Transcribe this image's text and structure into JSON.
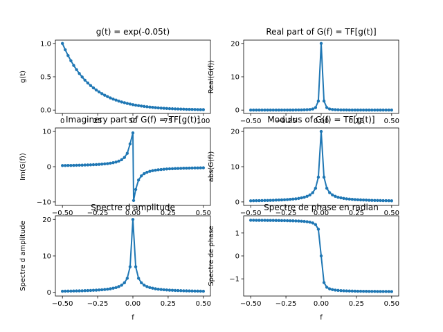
{
  "colors": {
    "line": "#1f77b4",
    "axes": "#000000",
    "background": "#ffffff"
  },
  "chart_data": [
    {
      "type": "line",
      "title": "g(t) = exp(-0.05t)",
      "xlabel": "",
      "ylabel": "g(t)",
      "xlim": [
        -5,
        105
      ],
      "ylim": [
        -0.05,
        1.05
      ],
      "xticks": [
        0,
        25,
        50,
        75,
        100
      ],
      "xtick_labels": [
        "0",
        "25",
        "50",
        "75",
        "100"
      ],
      "yticks": [
        0,
        0.5,
        1
      ],
      "ytick_labels": [
        "0.0",
        "0.5",
        "1.0"
      ],
      "grid": false,
      "series": [
        {
          "x": [
            0,
            2,
            4,
            6,
            8,
            10,
            12,
            14,
            16,
            18,
            20,
            22,
            24,
            26,
            28,
            30,
            32,
            34,
            36,
            38,
            40,
            42,
            44,
            46,
            48,
            50,
            52,
            54,
            56,
            58,
            60,
            62,
            64,
            66,
            68,
            70,
            72,
            74,
            76,
            78,
            80,
            82,
            84,
            86,
            88,
            90,
            92,
            94,
            96,
            98,
            100
          ],
          "y": [
            1.0,
            0.905,
            0.819,
            0.741,
            0.67,
            0.607,
            0.549,
            0.497,
            0.449,
            0.407,
            0.368,
            0.333,
            0.301,
            0.273,
            0.247,
            0.223,
            0.202,
            0.183,
            0.165,
            0.15,
            0.135,
            0.122,
            0.111,
            0.1,
            0.091,
            0.082,
            0.074,
            0.067,
            0.061,
            0.055,
            0.05,
            0.045,
            0.041,
            0.037,
            0.033,
            0.03,
            0.027,
            0.025,
            0.022,
            0.02,
            0.018,
            0.017,
            0.015,
            0.014,
            0.012,
            0.011,
            0.01,
            0.009,
            0.008,
            0.007,
            0.007
          ]
        }
      ]
    },
    {
      "type": "line",
      "title": "Real part of G(f) = TF[g(t)]",
      "xlabel": "",
      "ylabel": "Real(G(f))",
      "xlim": [
        -0.55,
        0.55
      ],
      "ylim": [
        -1,
        21
      ],
      "xticks": [
        -0.5,
        -0.25,
        0,
        0.25,
        0.5
      ],
      "xtick_labels": [
        "−0.50",
        "−0.25",
        "0.00",
        "0.25",
        "0.50"
      ],
      "yticks": [
        0,
        10,
        20
      ],
      "ytick_labels": [
        "0",
        "10",
        "20"
      ],
      "grid": false,
      "series": [
        {
          "x": [
            -0.5,
            -0.48,
            -0.46,
            -0.44,
            -0.42,
            -0.4,
            -0.38,
            -0.36,
            -0.34,
            -0.32,
            -0.3,
            -0.28,
            -0.26,
            -0.24,
            -0.22,
            -0.2,
            -0.18,
            -0.16,
            -0.14,
            -0.12,
            -0.1,
            -0.08,
            -0.06,
            -0.04,
            -0.02,
            0,
            0.02,
            0.04,
            0.06,
            0.08,
            0.1,
            0.12,
            0.14,
            0.16,
            0.18,
            0.2,
            0.22,
            0.24,
            0.26,
            0.28,
            0.3,
            0.32,
            0.34,
            0.36,
            0.38,
            0.4,
            0.42,
            0.44,
            0.46,
            0.48,
            0.5
          ],
          "y": [
            0.01,
            0.01,
            0.01,
            0.01,
            0.01,
            0.01,
            0.01,
            0.01,
            0.01,
            0.01,
            0.01,
            0.02,
            0.02,
            0.02,
            0.03,
            0.03,
            0.04,
            0.05,
            0.06,
            0.09,
            0.12,
            0.19,
            0.33,
            0.76,
            2.72,
            20,
            2.72,
            0.76,
            0.33,
            0.19,
            0.12,
            0.09,
            0.06,
            0.05,
            0.04,
            0.03,
            0.03,
            0.02,
            0.02,
            0.02,
            0.01,
            0.01,
            0.01,
            0.01,
            0.01,
            0.01,
            0.01,
            0.01,
            0.01,
            0.01,
            0.01
          ]
        }
      ]
    },
    {
      "type": "line",
      "title": "Imaginery part of G(f) = TF[g(t)]",
      "xlabel": "",
      "ylabel": "Im(G(f))",
      "xlim": [
        -0.55,
        0.55
      ],
      "ylim": [
        -11,
        11
      ],
      "xticks": [
        -0.5,
        -0.25,
        0,
        0.25,
        0.5
      ],
      "xtick_labels": [
        "−0.50",
        "−0.25",
        "0.00",
        "0.25",
        "0.50"
      ],
      "yticks": [
        -10,
        0,
        10
      ],
      "ytick_labels": [
        "−10",
        "0",
        "10"
      ],
      "grid": false,
      "series": [
        {
          "x": [
            -0.5,
            -0.48,
            -0.46,
            -0.44,
            -0.42,
            -0.4,
            -0.38,
            -0.36,
            -0.34,
            -0.32,
            -0.3,
            -0.28,
            -0.26,
            -0.24,
            -0.22,
            -0.2,
            -0.18,
            -0.16,
            -0.14,
            -0.12,
            -0.1,
            -0.08,
            -0.06,
            -0.04,
            -0.02,
            0,
            0.005,
            0.02,
            0.04,
            0.06,
            0.08,
            0.1,
            0.12,
            0.14,
            0.16,
            0.18,
            0.2,
            0.22,
            0.24,
            0.26,
            0.28,
            0.3,
            0.32,
            0.34,
            0.36,
            0.38,
            0.4,
            0.42,
            0.44,
            0.46,
            0.48,
            0.5
          ],
          "y": [
            0.32,
            0.33,
            0.35,
            0.36,
            0.38,
            0.4,
            0.42,
            0.44,
            0.47,
            0.5,
            0.53,
            0.57,
            0.61,
            0.66,
            0.72,
            0.8,
            0.88,
            0.99,
            1.13,
            1.32,
            1.58,
            1.97,
            2.61,
            3.8,
            6.46,
            9.6,
            -9.6,
            -6.46,
            -3.8,
            -2.61,
            -1.97,
            -1.58,
            -1.32,
            -1.13,
            -0.99,
            -0.88,
            -0.8,
            -0.72,
            -0.66,
            -0.61,
            -0.57,
            -0.53,
            -0.5,
            -0.47,
            -0.44,
            -0.42,
            -0.4,
            -0.38,
            -0.36,
            -0.35,
            -0.33,
            -0.32
          ]
        }
      ]
    },
    {
      "type": "line",
      "title": "Modulus of G(f) = TF[g(t)]",
      "xlabel": "",
      "ylabel": "abs(G(f))",
      "xlim": [
        -0.55,
        0.55
      ],
      "ylim": [
        -1,
        21
      ],
      "xticks": [
        -0.5,
        -0.25,
        0,
        0.25,
        0.5
      ],
      "xtick_labels": [
        "−0.50",
        "−0.25",
        "0.00",
        "0.25",
        "0.50"
      ],
      "yticks": [
        0,
        10,
        20
      ],
      "ytick_labels": [
        "0",
        "10",
        "20"
      ],
      "grid": false,
      "series": [
        {
          "x": [
            -0.5,
            -0.48,
            -0.46,
            -0.44,
            -0.42,
            -0.4,
            -0.38,
            -0.36,
            -0.34,
            -0.32,
            -0.3,
            -0.28,
            -0.26,
            -0.24,
            -0.22,
            -0.2,
            -0.18,
            -0.16,
            -0.14,
            -0.12,
            -0.1,
            -0.08,
            -0.06,
            -0.04,
            -0.02,
            0,
            0.02,
            0.04,
            0.06,
            0.08,
            0.1,
            0.12,
            0.14,
            0.16,
            0.18,
            0.2,
            0.22,
            0.24,
            0.26,
            0.28,
            0.3,
            0.32,
            0.34,
            0.36,
            0.38,
            0.4,
            0.42,
            0.44,
            0.46,
            0.48,
            0.5
          ],
          "y": [
            0.32,
            0.33,
            0.35,
            0.36,
            0.38,
            0.4,
            0.42,
            0.44,
            0.47,
            0.5,
            0.53,
            0.57,
            0.61,
            0.66,
            0.72,
            0.8,
            0.88,
            0.99,
            1.14,
            1.32,
            1.59,
            1.98,
            2.63,
            3.88,
            7.02,
            20,
            7.02,
            3.88,
            2.63,
            1.98,
            1.59,
            1.32,
            1.14,
            0.99,
            0.88,
            0.8,
            0.72,
            0.66,
            0.61,
            0.57,
            0.53,
            0.5,
            0.47,
            0.44,
            0.42,
            0.4,
            0.38,
            0.36,
            0.35,
            0.33,
            0.32
          ]
        }
      ]
    },
    {
      "type": "line",
      "title": "Spectre d amplitude",
      "xlabel": "f",
      "ylabel": "Spectre d amplitude",
      "xlim": [
        -0.55,
        0.55
      ],
      "ylim": [
        -1,
        21
      ],
      "xticks": [
        -0.5,
        -0.25,
        0,
        0.25,
        0.5
      ],
      "xtick_labels": [
        "−0.50",
        "−0.25",
        "0.00",
        "0.25",
        "0.50"
      ],
      "yticks": [
        0,
        10,
        20
      ],
      "ytick_labels": [
        "0",
        "10",
        "20"
      ],
      "grid": false,
      "series": [
        {
          "x": [
            -0.5,
            -0.48,
            -0.46,
            -0.44,
            -0.42,
            -0.4,
            -0.38,
            -0.36,
            -0.34,
            -0.32,
            -0.3,
            -0.28,
            -0.26,
            -0.24,
            -0.22,
            -0.2,
            -0.18,
            -0.16,
            -0.14,
            -0.12,
            -0.1,
            -0.08,
            -0.06,
            -0.04,
            -0.02,
            0,
            0.02,
            0.04,
            0.06,
            0.08,
            0.1,
            0.12,
            0.14,
            0.16,
            0.18,
            0.2,
            0.22,
            0.24,
            0.26,
            0.28,
            0.3,
            0.32,
            0.34,
            0.36,
            0.38,
            0.4,
            0.42,
            0.44,
            0.46,
            0.48,
            0.5
          ],
          "y": [
            0.32,
            0.33,
            0.35,
            0.36,
            0.38,
            0.4,
            0.42,
            0.44,
            0.47,
            0.5,
            0.53,
            0.57,
            0.61,
            0.66,
            0.72,
            0.8,
            0.88,
            0.99,
            1.14,
            1.32,
            1.59,
            1.98,
            2.63,
            3.88,
            7.02,
            20,
            7.02,
            3.88,
            2.63,
            1.98,
            1.59,
            1.32,
            1.14,
            0.99,
            0.88,
            0.8,
            0.72,
            0.66,
            0.61,
            0.57,
            0.53,
            0.5,
            0.47,
            0.44,
            0.42,
            0.4,
            0.38,
            0.36,
            0.35,
            0.33,
            0.32
          ]
        }
      ]
    },
    {
      "type": "line",
      "title": "Spectre de phase en radian",
      "xlabel": "f",
      "ylabel": "Spectre de phase",
      "xlim": [
        -0.55,
        0.55
      ],
      "ylim": [
        -1.75,
        1.75
      ],
      "xticks": [
        -0.5,
        -0.25,
        0,
        0.25,
        0.5
      ],
      "xtick_labels": [
        "−0.50",
        "−0.25",
        "0.00",
        "0.25",
        "0.50"
      ],
      "yticks": [
        -1,
        0,
        1
      ],
      "ytick_labels": [
        "−1",
        "0",
        "1"
      ],
      "grid": false,
      "series": [
        {
          "x": [
            -0.5,
            -0.48,
            -0.46,
            -0.44,
            -0.42,
            -0.4,
            -0.38,
            -0.36,
            -0.34,
            -0.32,
            -0.3,
            -0.28,
            -0.26,
            -0.24,
            -0.22,
            -0.2,
            -0.18,
            -0.16,
            -0.14,
            -0.12,
            -0.1,
            -0.08,
            -0.06,
            -0.04,
            -0.02,
            0,
            0.02,
            0.04,
            0.06,
            0.08,
            0.1,
            0.12,
            0.14,
            0.16,
            0.18,
            0.2,
            0.22,
            0.24,
            0.26,
            0.28,
            0.3,
            0.32,
            0.34,
            0.36,
            0.38,
            0.4,
            0.42,
            0.44,
            0.46,
            0.48,
            0.5
          ],
          "y": [
            1.555,
            1.554,
            1.553,
            1.552,
            1.551,
            1.551,
            1.549,
            1.548,
            1.547,
            1.546,
            1.544,
            1.542,
            1.54,
            1.537,
            1.534,
            1.531,
            1.526,
            1.521,
            1.514,
            1.505,
            1.491,
            1.471,
            1.437,
            1.367,
            1.163,
            0,
            -1.163,
            -1.367,
            -1.437,
            -1.471,
            -1.491,
            -1.505,
            -1.514,
            -1.521,
            -1.526,
            -1.531,
            -1.534,
            -1.537,
            -1.54,
            -1.542,
            -1.544,
            -1.546,
            -1.547,
            -1.548,
            -1.549,
            -1.551,
            -1.551,
            -1.552,
            -1.553,
            -1.554,
            -1.555
          ]
        }
      ]
    }
  ]
}
